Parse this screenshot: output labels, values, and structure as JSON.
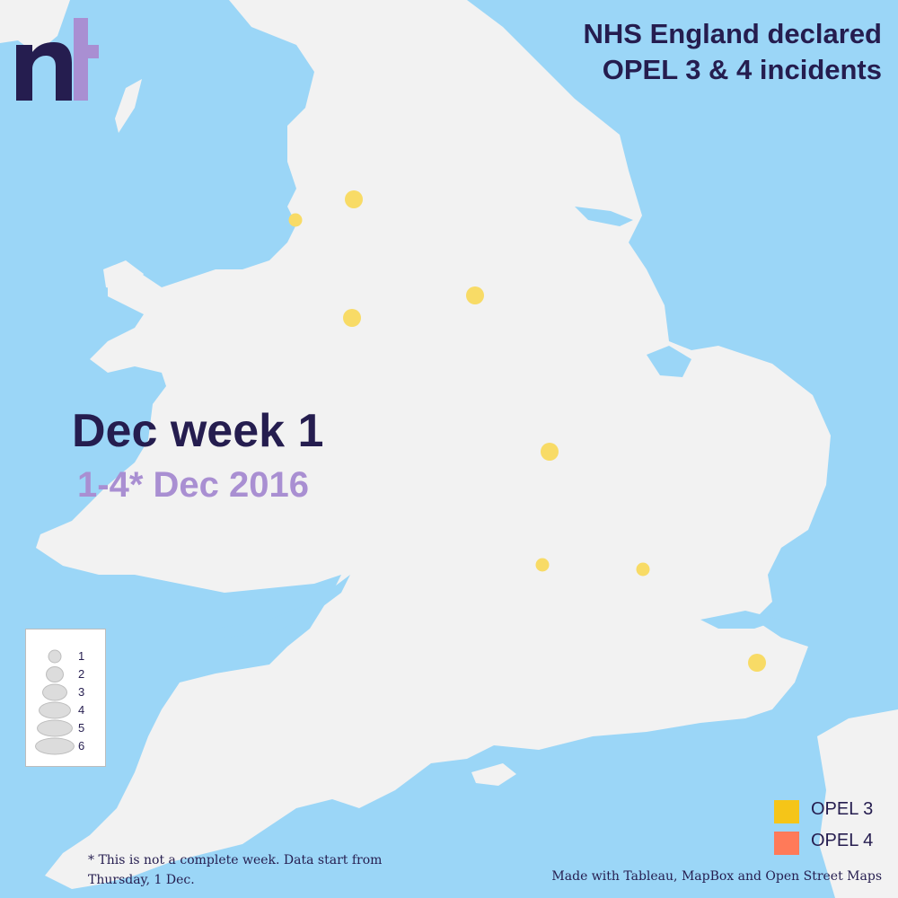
{
  "title": {
    "line1": "NHS England declared",
    "line2": "OPEL 3 & 4 incidents"
  },
  "period": {
    "week": "Dec week 1",
    "dates": "1-4* Dec 2016"
  },
  "logo": {
    "text": "nt"
  },
  "size_legend": {
    "items": [
      "1",
      "2",
      "3",
      "4",
      "5",
      "6"
    ]
  },
  "color_legend": {
    "items": [
      {
        "label": "OPEL 3",
        "color": "#f5c518"
      },
      {
        "label": "OPEL 4",
        "color": "#ff7a59"
      }
    ]
  },
  "footnote": "* This is not a complete week. Data start from Thursday, 1 Dec.",
  "credit": "Made with Tableau, MapBox and Open Street Maps",
  "colors": {
    "sea": "#9bd6f7",
    "land": "#f2f2f2",
    "title": "#251d4f",
    "accent": "#a98fd2",
    "opel3_marker": "#f8db66"
  },
  "incidents": [
    {
      "level": "OPEL 3",
      "count": 2
    },
    {
      "level": "OPEL 3",
      "count": 1
    },
    {
      "level": "OPEL 3",
      "count": 2
    },
    {
      "level": "OPEL 3",
      "count": 2
    },
    {
      "level": "OPEL 3",
      "count": 2
    },
    {
      "level": "OPEL 3",
      "count": 1
    },
    {
      "level": "OPEL 3",
      "count": 1
    },
    {
      "level": "OPEL 3",
      "count": 2
    }
  ]
}
